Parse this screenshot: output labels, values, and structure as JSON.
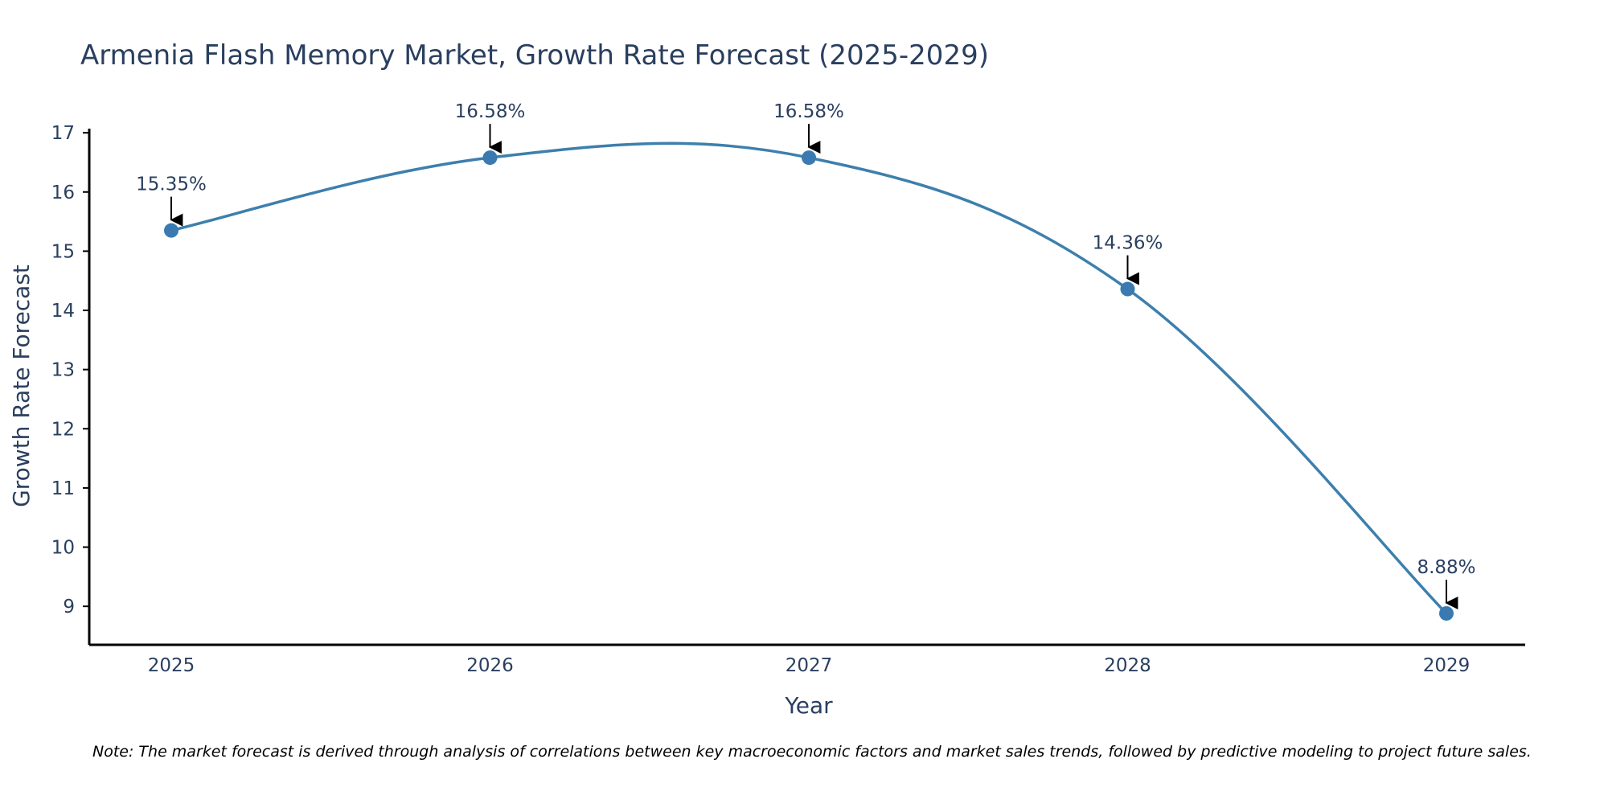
{
  "chart_data": {
    "type": "line",
    "title": "Armenia Flash Memory Market, Growth Rate Forecast (2025-2029)",
    "xlabel": "Year",
    "ylabel": "Growth Rate Forecast",
    "categories": [
      "2025",
      "2026",
      "2027",
      "2028",
      "2029"
    ],
    "series": [
      {
        "name": "Growth Rate Forecast",
        "values": [
          15.35,
          16.58,
          16.58,
          14.36,
          8.88
        ],
        "labels": [
          "15.35%",
          "16.58%",
          "16.58%",
          "14.36%",
          "8.88%"
        ]
      }
    ],
    "yticks": [
      9,
      10,
      11,
      12,
      13,
      14,
      15,
      16,
      17
    ],
    "ylim": [
      8.35,
      17.07
    ],
    "grid": false,
    "line_color": "#3d7fad",
    "marker_color": "#3a7ab0",
    "arrow_color": "#000000",
    "note": "Note: The market forecast is derived through analysis of correlations between key macroeconomic factors and market sales trends, followed by predictive modeling to project future sales."
  }
}
